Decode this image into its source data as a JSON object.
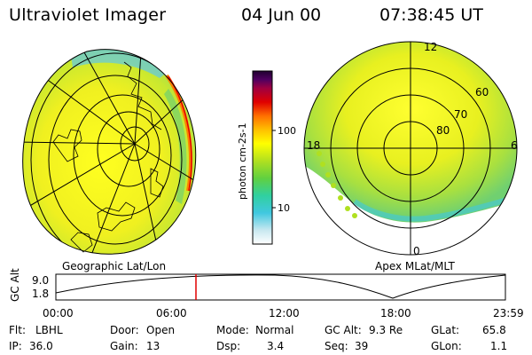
{
  "header": {
    "title": "Ultraviolet Imager",
    "date": "04 Jun 00",
    "time": "07:38:45 UT"
  },
  "panels": {
    "geo_label": "Geographic Lat/Lon",
    "apex_label": "Apex MLat/MLT"
  },
  "colorbar": {
    "label": "photon cm-2s-1",
    "tick_100": "100",
    "tick_10": "10",
    "colors": [
      "#ffffff",
      "#c8e8f0",
      "#40c8e0",
      "#30d0a0",
      "#60d040",
      "#b0e020",
      "#ffff00",
      "#ffc000",
      "#ff7000",
      "#e00000",
      "#a00040",
      "#500060",
      "#200030"
    ]
  },
  "polar": {
    "mlt_12": "12",
    "mlt_18": "18",
    "mlt_6": "6",
    "mlt_0": "0",
    "lat_60": "60",
    "lat_70": "70",
    "lat_80": "80"
  },
  "altplot": {
    "axis_label": "GC Alt",
    "y_top": "9.0",
    "y_bottom": "1.8",
    "x_ticks": [
      "00:00",
      "06:00",
      "12:00",
      "18:00",
      "23:59"
    ],
    "marker_color": "#e00000"
  },
  "info": {
    "flt_label": "Flt:",
    "flt_value": "LBHL",
    "ip_label": "IP:",
    "ip_value": "36.0",
    "door_label": "Door:",
    "door_value": "Open",
    "gain_label": "Gain:",
    "gain_value": "13",
    "mode_label": "Mode:",
    "mode_value": "Normal",
    "dsp_label": "Dsp:",
    "dsp_value": "3.4",
    "gcalt_label": "GC Alt:",
    "gcalt_value": "9.3 Re",
    "seq_label": "Seq:",
    "seq_value": "39",
    "glat_label": "GLat:",
    "glat_value": "65.8",
    "glon_label": "GLon:",
    "glon_value": "1.1"
  }
}
